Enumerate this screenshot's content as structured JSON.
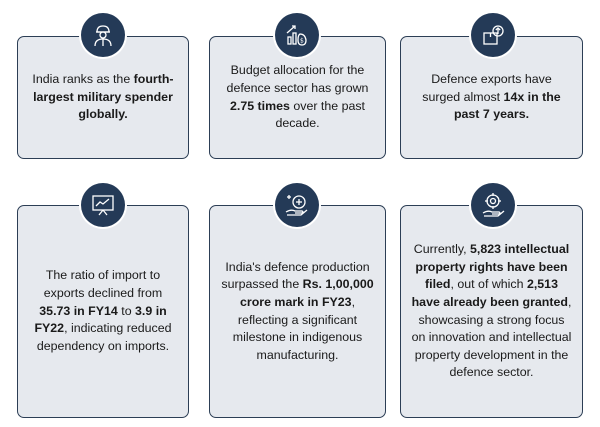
{
  "cards": [
    {
      "icon": "soldier-icon",
      "parts": [
        {
          "t": "India ranks as the ",
          "b": false
        },
        {
          "t": "fourth-largest military spender globally.",
          "b": true
        }
      ]
    },
    {
      "icon": "budget-growth-icon",
      "parts": [
        {
          "t": "Budget allocation for the defence sector has grown ",
          "b": false
        },
        {
          "t": "2.75 times",
          "b": true
        },
        {
          "t": " over the past decade.",
          "b": false
        }
      ]
    },
    {
      "icon": "export-box-icon",
      "parts": [
        {
          "t": "Defence exports have surged almost ",
          "b": false
        },
        {
          "t": "14x in the past 7 years.",
          "b": true
        }
      ]
    },
    {
      "icon": "presentation-chart-icon",
      "parts": [
        {
          "t": "The ratio of import to exports declined from ",
          "b": false
        },
        {
          "t": "35.73 in FY14",
          "b": true
        },
        {
          "t": " to ",
          "b": false
        },
        {
          "t": "3.9 in FY22",
          "b": true
        },
        {
          "t": ", indicating reduced dependency on imports.",
          "b": false
        }
      ]
    },
    {
      "icon": "hand-plus-icon",
      "parts": [
        {
          "t": "India's defence production surpassed the ",
          "b": false
        },
        {
          "t": "Rs. 1,00,000 crore mark in FY23",
          "b": true
        },
        {
          "t": ", reflecting a significant milestone in indigenous manufacturing.",
          "b": false
        }
      ]
    },
    {
      "icon": "target-hand-icon",
      "parts": [
        {
          "t": "Currently, ",
          "b": false
        },
        {
          "t": "5,823 intellectual property rights have been filed",
          "b": true
        },
        {
          "t": ", out of which ",
          "b": false
        },
        {
          "t": "2,513 have already been granted",
          "b": true
        },
        {
          "t": ", showcasing a strong focus on innovation and intellectual property development in the defence sector.",
          "b": false
        }
      ]
    }
  ]
}
